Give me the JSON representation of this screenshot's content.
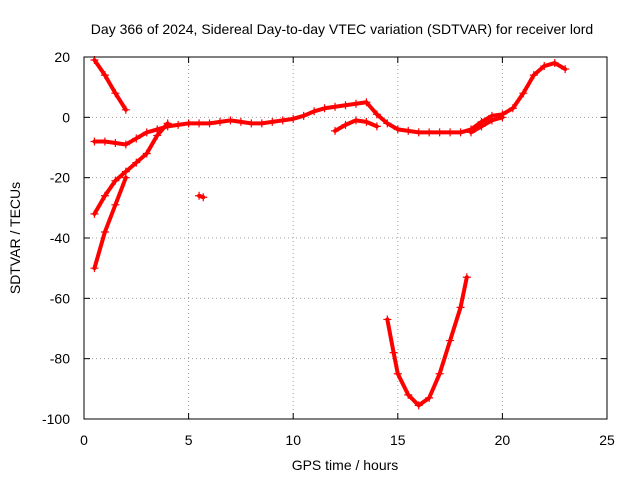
{
  "chart_data": {
    "type": "scatter",
    "title": "Day 366 of 2024, Sidereal Day-to-day VTEC variation (SDTVAR) for receiver lord",
    "xlabel": "GPS time / hours",
    "ylabel": "SDTVAR / TECUs",
    "xlim": [
      0,
      25
    ],
    "ylim": [
      -100,
      20
    ],
    "xticks": [
      0,
      5,
      10,
      15,
      20,
      25
    ],
    "yticks": [
      -100,
      -80,
      -60,
      -40,
      -20,
      0,
      20
    ],
    "grid": true,
    "marker_color": "#ff0000",
    "marker": "plus",
    "series": [
      {
        "values": [
          [
            0.5,
            19
          ],
          [
            1.0,
            14
          ],
          [
            1.5,
            8
          ],
          [
            2.0,
            2.5
          ]
        ]
      },
      {
        "values": [
          [
            0.5,
            -8
          ],
          [
            1.0,
            -8
          ],
          [
            1.5,
            -8.5
          ],
          [
            2.0,
            -9
          ],
          [
            2.5,
            -7
          ],
          [
            3.0,
            -5
          ],
          [
            3.5,
            -4
          ],
          [
            4.0,
            -3
          ],
          [
            4.5,
            -2.5
          ],
          [
            5.0,
            -2
          ],
          [
            5.5,
            -2
          ],
          [
            6.0,
            -2
          ],
          [
            6.5,
            -1.5
          ],
          [
            7.0,
            -1
          ],
          [
            7.5,
            -1.5
          ],
          [
            8.0,
            -2
          ],
          [
            8.5,
            -2
          ],
          [
            9.0,
            -1.5
          ],
          [
            9.5,
            -1
          ],
          [
            10.0,
            -0.5
          ],
          [
            10.5,
            0.5
          ],
          [
            11.0,
            2
          ],
          [
            11.5,
            3
          ],
          [
            12.0,
            3.5
          ],
          [
            12.5,
            4
          ],
          [
            13.0,
            4.5
          ],
          [
            13.5,
            5
          ],
          [
            14.0,
            1
          ],
          [
            14.5,
            -2
          ],
          [
            15.0,
            -4
          ],
          [
            15.5,
            -4.5
          ],
          [
            16.0,
            -5
          ],
          [
            16.5,
            -5
          ],
          [
            17.0,
            -5
          ],
          [
            17.5,
            -5
          ],
          [
            18.0,
            -5
          ],
          [
            18.5,
            -4
          ],
          [
            19.0,
            -1.5
          ],
          [
            19.5,
            0.5
          ],
          [
            20.0,
            1
          ],
          [
            20.5,
            3
          ],
          [
            21.0,
            8
          ],
          [
            21.5,
            14
          ],
          [
            22.0,
            17
          ],
          [
            22.5,
            18
          ],
          [
            23.0,
            16
          ]
        ]
      },
      {
        "values": [
          [
            12.0,
            -4.5
          ],
          [
            12.5,
            -2.5
          ],
          [
            13.0,
            -1
          ],
          [
            13.5,
            -1.5
          ],
          [
            14.0,
            -3
          ]
        ]
      },
      {
        "values": [
          [
            18.5,
            -5
          ],
          [
            19.0,
            -3
          ],
          [
            19.5,
            -1
          ],
          [
            20.0,
            0
          ]
        ]
      },
      {
        "values": [
          [
            0.5,
            -32
          ],
          [
            1.0,
            -26
          ],
          [
            1.5,
            -21
          ],
          [
            2.0,
            -18
          ],
          [
            2.5,
            -15
          ],
          [
            3.0,
            -12
          ],
          [
            3.5,
            -6
          ],
          [
            4.0,
            -2
          ]
        ]
      },
      {
        "values": [
          [
            0.5,
            -50
          ],
          [
            1.0,
            -38
          ],
          [
            1.5,
            -29
          ],
          [
            2.0,
            -20
          ]
        ]
      },
      {
        "values": [
          [
            5.5,
            -26
          ],
          [
            5.7,
            -26.5
          ]
        ]
      },
      {
        "values": [
          [
            14.5,
            -67
          ],
          [
            14.8,
            -78
          ],
          [
            15.0,
            -85
          ],
          [
            15.5,
            -92
          ],
          [
            16.0,
            -95.5
          ],
          [
            16.5,
            -93
          ],
          [
            17.0,
            -85
          ],
          [
            17.5,
            -74
          ],
          [
            18.0,
            -63
          ],
          [
            18.3,
            -53
          ]
        ]
      }
    ]
  }
}
